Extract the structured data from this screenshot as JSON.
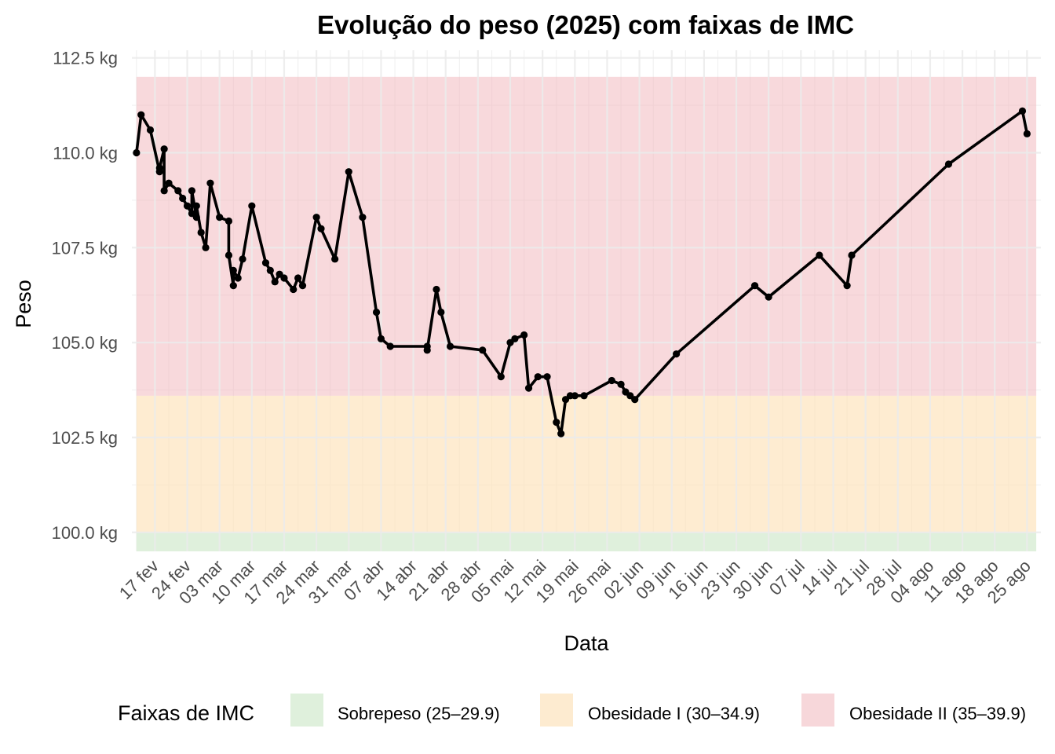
{
  "chart_data": {
    "type": "line",
    "title": "Evolução do peso (2025) com faixas de IMC",
    "xlabel": "Data",
    "ylabel": "Peso",
    "y_unit": "kg",
    "ylim": [
      99.5,
      112.7
    ],
    "y_ticks": [
      {
        "value": 100.0,
        "label": "100.0 kg"
      },
      {
        "value": 102.5,
        "label": "102.5 kg"
      },
      {
        "value": 105.0,
        "label": "105.0 kg"
      },
      {
        "value": 107.5,
        "label": "107.5 kg"
      },
      {
        "value": 110.0,
        "label": "110.0 kg"
      },
      {
        "value": 112.5,
        "label": "112.5 kg"
      }
    ],
    "xlim": [
      "2025-02-12",
      "2025-08-28"
    ],
    "x_ticks": [
      {
        "date": "2025-02-17",
        "label": "17 fev"
      },
      {
        "date": "2025-02-24",
        "label": "24 fev"
      },
      {
        "date": "2025-03-03",
        "label": "03 mar"
      },
      {
        "date": "2025-03-10",
        "label": "10 mar"
      },
      {
        "date": "2025-03-17",
        "label": "17 mar"
      },
      {
        "date": "2025-03-24",
        "label": "24 mar"
      },
      {
        "date": "2025-03-31",
        "label": "31 mar"
      },
      {
        "date": "2025-04-07",
        "label": "07 abr"
      },
      {
        "date": "2025-04-14",
        "label": "14 abr"
      },
      {
        "date": "2025-04-21",
        "label": "21 abr"
      },
      {
        "date": "2025-04-28",
        "label": "28 abr"
      },
      {
        "date": "2025-05-05",
        "label": "05 mai"
      },
      {
        "date": "2025-05-12",
        "label": "12 mai"
      },
      {
        "date": "2025-05-19",
        "label": "19 mai"
      },
      {
        "date": "2025-05-26",
        "label": "26 mai"
      },
      {
        "date": "2025-06-02",
        "label": "02 jun"
      },
      {
        "date": "2025-06-09",
        "label": "09 jun"
      },
      {
        "date": "2025-06-16",
        "label": "16 jun"
      },
      {
        "date": "2025-06-23",
        "label": "23 jun"
      },
      {
        "date": "2025-06-30",
        "label": "30 jun"
      },
      {
        "date": "2025-07-07",
        "label": "07 jul"
      },
      {
        "date": "2025-07-14",
        "label": "14 jul"
      },
      {
        "date": "2025-07-21",
        "label": "21 jul"
      },
      {
        "date": "2025-07-28",
        "label": "28 jul"
      },
      {
        "date": "2025-08-04",
        "label": "04 ago"
      },
      {
        "date": "2025-08-11",
        "label": "11 ago"
      },
      {
        "date": "2025-08-18",
        "label": "18 ago"
      },
      {
        "date": "2025-08-25",
        "label": "25 ago"
      }
    ],
    "grid": true,
    "bands": [
      {
        "name": "Sobrepeso (25–29.9)",
        "from": 86.0,
        "to": 100.0,
        "color": "#dff0dc",
        "opacity": 1
      },
      {
        "name": "Obesidade I (30–34.9)",
        "from": 100.0,
        "to": 103.6,
        "color": "#fde2b8",
        "opacity": 0.65
      },
      {
        "name": "Obesidade II (35–39.9)",
        "from": 103.6,
        "to": 112.0,
        "color": "#f2b3b9",
        "opacity": 0.5
      }
    ],
    "band_x_range": [
      "2025-02-13",
      "2025-08-27"
    ],
    "legend": {
      "title": "Faixas de IMC",
      "position": "bottom",
      "items": [
        {
          "label": "Sobrepeso (25–29.9)",
          "color": "#dff0dc"
        },
        {
          "label": "Obesidade I (30–34.9)",
          "color": "#fdebd0"
        },
        {
          "label": "Obesidade II (35–39.9)",
          "color": "#f7d7da"
        }
      ]
    },
    "series": [
      {
        "color": "#000000",
        "points": [
          {
            "x": "2025-02-13",
            "y": 110.0
          },
          {
            "x": "2025-02-14",
            "y": 111.0
          },
          {
            "x": "2025-02-16",
            "y": 110.6
          },
          {
            "x": "2025-02-18",
            "y": 109.5
          },
          {
            "x": "2025-02-18",
            "y": 109.6
          },
          {
            "x": "2025-02-19",
            "y": 110.1
          },
          {
            "x": "2025-02-19",
            "y": 109.0
          },
          {
            "x": "2025-02-20",
            "y": 109.2
          },
          {
            "x": "2025-02-22",
            "y": 109.0
          },
          {
            "x": "2025-02-23",
            "y": 108.8
          },
          {
            "x": "2025-02-24",
            "y": 108.6
          },
          {
            "x": "2025-02-25",
            "y": 108.4
          },
          {
            "x": "2025-02-25",
            "y": 109.0
          },
          {
            "x": "2025-02-26",
            "y": 108.3
          },
          {
            "x": "2025-02-26",
            "y": 108.6
          },
          {
            "x": "2025-02-27",
            "y": 107.9
          },
          {
            "x": "2025-02-28",
            "y": 107.5
          },
          {
            "x": "2025-03-01",
            "y": 109.2
          },
          {
            "x": "2025-03-03",
            "y": 108.3
          },
          {
            "x": "2025-03-05",
            "y": 108.2
          },
          {
            "x": "2025-03-05",
            "y": 107.3
          },
          {
            "x": "2025-03-06",
            "y": 106.5
          },
          {
            "x": "2025-03-06",
            "y": 106.9
          },
          {
            "x": "2025-03-07",
            "y": 106.7
          },
          {
            "x": "2025-03-08",
            "y": 107.2
          },
          {
            "x": "2025-03-10",
            "y": 108.6
          },
          {
            "x": "2025-03-13",
            "y": 107.1
          },
          {
            "x": "2025-03-14",
            "y": 106.9
          },
          {
            "x": "2025-03-15",
            "y": 106.6
          },
          {
            "x": "2025-03-16",
            "y": 106.8
          },
          {
            "x": "2025-03-17",
            "y": 106.7
          },
          {
            "x": "2025-03-19",
            "y": 106.4
          },
          {
            "x": "2025-03-20",
            "y": 106.7
          },
          {
            "x": "2025-03-21",
            "y": 106.5
          },
          {
            "x": "2025-03-24",
            "y": 108.3
          },
          {
            "x": "2025-03-25",
            "y": 108.0
          },
          {
            "x": "2025-03-28",
            "y": 107.2
          },
          {
            "x": "2025-03-31",
            "y": 109.5
          },
          {
            "x": "2025-04-03",
            "y": 108.3
          },
          {
            "x": "2025-04-06",
            "y": 105.8
          },
          {
            "x": "2025-04-07",
            "y": 105.1
          },
          {
            "x": "2025-04-09",
            "y": 104.9
          },
          {
            "x": "2025-04-17",
            "y": 104.9
          },
          {
            "x": "2025-04-17",
            "y": 104.8
          },
          {
            "x": "2025-04-19",
            "y": 106.4
          },
          {
            "x": "2025-04-20",
            "y": 105.8
          },
          {
            "x": "2025-04-22",
            "y": 104.9
          },
          {
            "x": "2025-04-29",
            "y": 104.8
          },
          {
            "x": "2025-05-03",
            "y": 104.1
          },
          {
            "x": "2025-05-05",
            "y": 105.0
          },
          {
            "x": "2025-05-06",
            "y": 105.1
          },
          {
            "x": "2025-05-08",
            "y": 105.2
          },
          {
            "x": "2025-05-09",
            "y": 103.8
          },
          {
            "x": "2025-05-11",
            "y": 104.1
          },
          {
            "x": "2025-05-13",
            "y": 104.1
          },
          {
            "x": "2025-05-15",
            "y": 102.9
          },
          {
            "x": "2025-05-16",
            "y": 102.6
          },
          {
            "x": "2025-05-17",
            "y": 103.5
          },
          {
            "x": "2025-05-18",
            "y": 103.6
          },
          {
            "x": "2025-05-19",
            "y": 103.6
          },
          {
            "x": "2025-05-21",
            "y": 103.6
          },
          {
            "x": "2025-05-27",
            "y": 104.0
          },
          {
            "x": "2025-05-29",
            "y": 103.9
          },
          {
            "x": "2025-05-30",
            "y": 103.7
          },
          {
            "x": "2025-05-31",
            "y": 103.6
          },
          {
            "x": "2025-06-01",
            "y": 103.5
          },
          {
            "x": "2025-06-10",
            "y": 104.7
          },
          {
            "x": "2025-06-27",
            "y": 106.5
          },
          {
            "x": "2025-06-30",
            "y": 106.2
          },
          {
            "x": "2025-07-11",
            "y": 107.3
          },
          {
            "x": "2025-07-17",
            "y": 106.5
          },
          {
            "x": "2025-07-18",
            "y": 107.3
          },
          {
            "x": "2025-08-08",
            "y": 109.7
          },
          {
            "x": "2025-08-24",
            "y": 111.1
          },
          {
            "x": "2025-08-25",
            "y": 110.5
          }
        ]
      }
    ]
  }
}
